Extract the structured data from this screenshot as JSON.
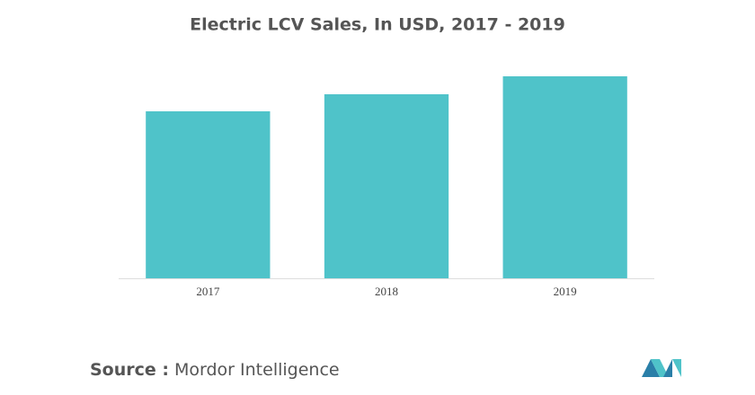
{
  "chart_data": {
    "type": "bar",
    "title": "Electric LCV Sales, In USD, 2017 - 2019",
    "categories": [
      "2017",
      "2018",
      "2019"
    ],
    "values": [
      186,
      205,
      225
    ],
    "color": "#4fc3c9",
    "ylim": [
      0,
      250
    ],
    "source_label": "Source :",
    "source": "Mordor Intelligence"
  }
}
